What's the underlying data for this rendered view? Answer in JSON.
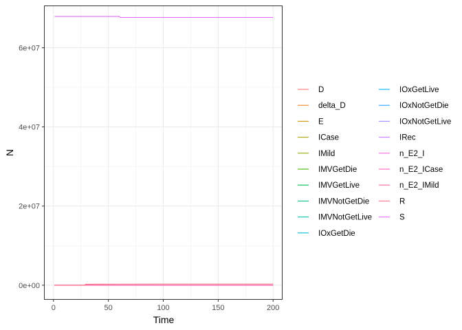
{
  "chart_data": {
    "type": "line",
    "xlabel": "Time",
    "ylabel": "N",
    "xlim": [
      -8,
      208
    ],
    "ylim": [
      -3500000,
      70500000
    ],
    "x_ticks": [
      0,
      50,
      100,
      150,
      200
    ],
    "x_tick_labels": [
      "0",
      "50",
      "100",
      "150",
      "200"
    ],
    "y_ticks": [
      0,
      20000000,
      40000000,
      60000000
    ],
    "y_tick_labels": [
      "0e+00",
      "2e+07",
      "4e+07",
      "6e+07"
    ],
    "grid": true,
    "legend_position": "right",
    "series": [
      {
        "name": "D",
        "color": "#F8766D",
        "x": [
          1,
          200
        ],
        "y": [
          0,
          0
        ]
      },
      {
        "name": "delta_D",
        "color": "#E7851E",
        "x": [
          1,
          200
        ],
        "y": [
          0,
          0
        ]
      },
      {
        "name": "E",
        "color": "#D09400",
        "x": [
          1,
          200
        ],
        "y": [
          0,
          0
        ]
      },
      {
        "name": "ICase",
        "color": "#B2A100",
        "x": [
          1,
          200
        ],
        "y": [
          0,
          0
        ]
      },
      {
        "name": "IMild",
        "color": "#89AC00",
        "x": [
          1,
          200
        ],
        "y": [
          0,
          0
        ]
      },
      {
        "name": "IMVGetDie",
        "color": "#45B500",
        "x": [
          1,
          200
        ],
        "y": [
          0,
          0
        ]
      },
      {
        "name": "IMVGetLive",
        "color": "#00BC51",
        "x": [
          1,
          200
        ],
        "y": [
          0,
          0
        ]
      },
      {
        "name": "IMVNotGetDie",
        "color": "#00C087",
        "x": [
          1,
          200
        ],
        "y": [
          0,
          0
        ]
      },
      {
        "name": "IMVNotGetLive",
        "color": "#00C0B2",
        "x": [
          1,
          200
        ],
        "y": [
          0,
          0
        ]
      },
      {
        "name": "IOxGetDie",
        "color": "#00BCD6",
        "x": [
          1,
          200
        ],
        "y": [
          0,
          0
        ]
      },
      {
        "name": "IOxGetLive",
        "color": "#00B3F2",
        "x": [
          1,
          200
        ],
        "y": [
          0,
          0
        ]
      },
      {
        "name": "IOxNotGetDie",
        "color": "#29A3FF",
        "x": [
          1,
          200
        ],
        "y": [
          0,
          0
        ]
      },
      {
        "name": "IOxNotGetLive",
        "color": "#9C8DFF",
        "x": [
          1,
          200
        ],
        "y": [
          0,
          0
        ]
      },
      {
        "name": "IRec",
        "color": "#D277FF",
        "x": [
          1,
          200
        ],
        "y": [
          0,
          0
        ]
      },
      {
        "name": "n_E2_I",
        "color": "#F166E8",
        "x": [
          1,
          200
        ],
        "y": [
          0,
          0
        ]
      },
      {
        "name": "n_E2_ICase",
        "color": "#FF61C7",
        "x": [
          1,
          200
        ],
        "y": [
          0,
          0
        ]
      },
      {
        "name": "n_E2_IMild",
        "color": "#FF689E",
        "x": [
          1,
          200
        ],
        "y": [
          0,
          0
        ]
      },
      {
        "name": "R",
        "color": "#FC717F",
        "x": [
          1,
          29,
          29,
          60,
          100,
          200
        ],
        "y": [
          0,
          0,
          250000,
          280000,
          300000,
          300000
        ]
      },
      {
        "name": "S",
        "color": "#E36EF6",
        "x": [
          1,
          60,
          61,
          200
        ],
        "y": [
          67900000,
          67900000,
          67650000,
          67650000
        ]
      }
    ]
  }
}
